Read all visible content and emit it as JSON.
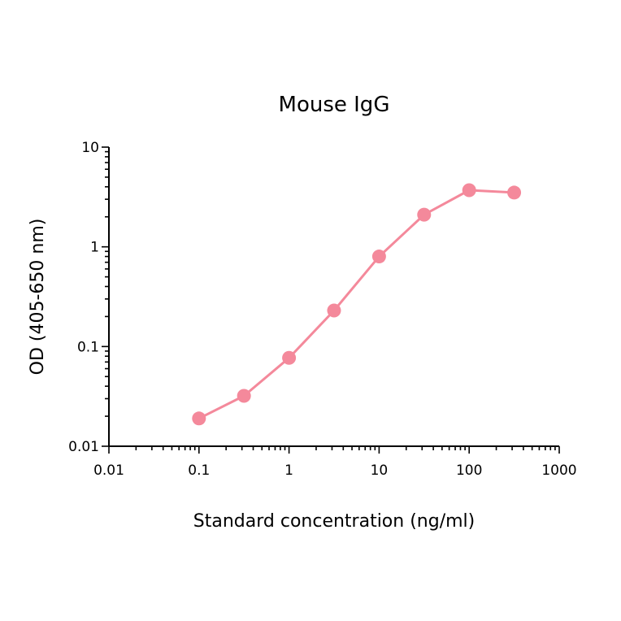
{
  "chart_data": {
    "type": "line",
    "title": "Mouse IgG",
    "xlabel": "Standard concentration (ng/ml)",
    "ylabel": "OD (405-650 nm)",
    "x_scale": "log",
    "y_scale": "log",
    "xlim": [
      0.01,
      1000
    ],
    "ylim": [
      0.01,
      10
    ],
    "x_ticks": [
      0.01,
      0.1,
      1,
      10,
      100,
      1000
    ],
    "x_tick_labels": [
      "0.01",
      "0.1",
      "1",
      "10",
      "100",
      "1000"
    ],
    "y_ticks": [
      0.01,
      0.1,
      1,
      10
    ],
    "y_tick_labels": [
      "0.01",
      "0.1",
      "1",
      "10"
    ],
    "grid": false,
    "legend": "none",
    "series": [
      {
        "color": "#f4899b",
        "x": [
          0.1,
          0.316,
          1,
          3.16,
          10,
          31.6,
          100,
          316
        ],
        "y": [
          0.019,
          0.032,
          0.077,
          0.23,
          0.8,
          2.1,
          3.7,
          3.5
        ]
      }
    ]
  }
}
